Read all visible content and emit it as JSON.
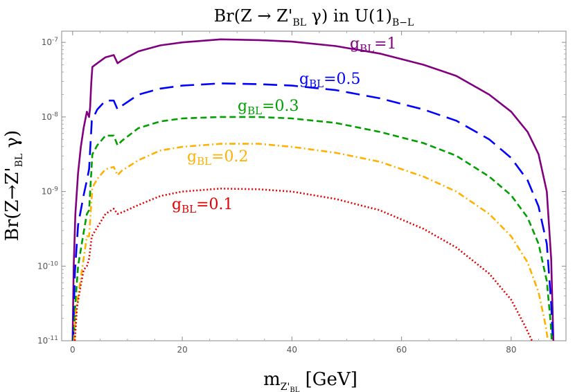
{
  "chart_data": {
    "type": "line",
    "title": {
      "main": "Br(Z → Z'",
      "sub1": "BL",
      "mid": " γ) in U(1)",
      "sub2": "B−L"
    },
    "xlabel": {
      "main": "m",
      "sub": "Z'",
      "subsub": "BL",
      "tail": " [GeV]"
    },
    "ylabel": {
      "main": "Br(Z→Z'",
      "sub": "BL",
      "tail": " γ)"
    },
    "x_scale": "linear",
    "y_scale": "log",
    "xlim": [
      -2,
      90
    ],
    "ylim_log10": [
      -11,
      -6.85
    ],
    "x_ticks": [
      0,
      20,
      40,
      60,
      80
    ],
    "x_tick_labels": [
      "0",
      "20",
      "40",
      "60",
      "80"
    ],
    "y_ticks_log10": [
      -11,
      -10,
      -9,
      -8,
      -7
    ],
    "y_tick_labels": [
      {
        "base": "10",
        "exp": "-11"
      },
      {
        "base": "10",
        "exp": "-10"
      },
      {
        "base": "10",
        "exp": "-9"
      },
      {
        "base": "10",
        "exp": "-8"
      },
      {
        "base": "10",
        "exp": "-7"
      }
    ],
    "series": [
      {
        "name": "gBL=1",
        "label": {
          "g": "g",
          "sub": "BL",
          "val": "=1"
        },
        "color": "#800080",
        "dash": "solid",
        "points": [
          [
            0,
            -11.0
          ],
          [
            0.2,
            -10.0
          ],
          [
            0.5,
            -9.3
          ],
          [
            1.0,
            -8.75
          ],
          [
            1.5,
            -8.4
          ],
          [
            2.0,
            -8.15
          ],
          [
            2.6,
            -7.93
          ],
          [
            3.0,
            -8.0
          ],
          [
            3.2,
            -7.87
          ],
          [
            3.4,
            -7.55
          ],
          [
            3.6,
            -7.33
          ],
          [
            4.5,
            -7.28
          ],
          [
            6.0,
            -7.2
          ],
          [
            7.5,
            -7.17
          ],
          [
            8.2,
            -7.28
          ],
          [
            9.0,
            -7.24
          ],
          [
            12.0,
            -7.12
          ],
          [
            16.0,
            -7.04
          ],
          [
            20.0,
            -7.0
          ],
          [
            27.0,
            -6.96
          ],
          [
            34.0,
            -6.97
          ],
          [
            40.0,
            -6.99
          ],
          [
            48.0,
            -7.05
          ],
          [
            56.0,
            -7.15
          ],
          [
            64.0,
            -7.3
          ],
          [
            70.0,
            -7.45
          ],
          [
            76.0,
            -7.7
          ],
          [
            80.0,
            -7.93
          ],
          [
            83.0,
            -8.2
          ],
          [
            85.0,
            -8.5
          ],
          [
            86.5,
            -9.0
          ],
          [
            87.3,
            -9.9
          ],
          [
            87.7,
            -11.0
          ]
        ]
      },
      {
        "name": "gBL=0.5",
        "label": {
          "g": "g",
          "sub": "BL",
          "val": "=0.5"
        },
        "color": "#0000ff",
        "dash": "longdash",
        "points": [
          [
            0.1,
            -11.0
          ],
          [
            0.4,
            -10.1
          ],
          [
            1.0,
            -9.45
          ],
          [
            2.0,
            -9.05
          ],
          [
            2.6,
            -8.85
          ],
          [
            3.0,
            -8.7
          ],
          [
            3.5,
            -8.05
          ],
          [
            4.5,
            -7.9
          ],
          [
            6.0,
            -7.78
          ],
          [
            7.5,
            -7.78
          ],
          [
            8.2,
            -7.9
          ],
          [
            9.0,
            -7.85
          ],
          [
            12.0,
            -7.7
          ],
          [
            16.0,
            -7.62
          ],
          [
            20.0,
            -7.58
          ],
          [
            27.0,
            -7.55
          ],
          [
            34.0,
            -7.56
          ],
          [
            40.0,
            -7.58
          ],
          [
            48.0,
            -7.64
          ],
          [
            56.0,
            -7.75
          ],
          [
            64.0,
            -7.9
          ],
          [
            70.0,
            -8.05
          ],
          [
            76.0,
            -8.3
          ],
          [
            80.0,
            -8.55
          ],
          [
            83.0,
            -8.85
          ],
          [
            85.0,
            -9.2
          ],
          [
            86.5,
            -9.7
          ],
          [
            87.3,
            -10.5
          ],
          [
            87.6,
            -11.0
          ]
        ]
      },
      {
        "name": "gBL=0.3",
        "label": {
          "g": "g",
          "sub": "BL",
          "val": "=0.3"
        },
        "color": "#00a000",
        "dash": "dashed",
        "points": [
          [
            0.2,
            -11.0
          ],
          [
            0.5,
            -10.5
          ],
          [
            1.0,
            -10.0
          ],
          [
            2.0,
            -9.55
          ],
          [
            2.6,
            -9.3
          ],
          [
            3.0,
            -9.25
          ],
          [
            3.6,
            -8.5
          ],
          [
            4.5,
            -8.38
          ],
          [
            6.0,
            -8.25
          ],
          [
            7.5,
            -8.25
          ],
          [
            8.2,
            -8.38
          ],
          [
            9.0,
            -8.32
          ],
          [
            12.0,
            -8.15
          ],
          [
            16.0,
            -8.06
          ],
          [
            20.0,
            -8.02
          ],
          [
            27.0,
            -8.0
          ],
          [
            34.0,
            -8.0
          ],
          [
            40.0,
            -8.02
          ],
          [
            48.0,
            -8.08
          ],
          [
            56.0,
            -8.2
          ],
          [
            64.0,
            -8.35
          ],
          [
            70.0,
            -8.52
          ],
          [
            76.0,
            -8.8
          ],
          [
            80.0,
            -9.05
          ],
          [
            83.0,
            -9.35
          ],
          [
            85.0,
            -9.7
          ],
          [
            86.5,
            -10.2
          ],
          [
            87.2,
            -10.75
          ],
          [
            87.4,
            -11.0
          ]
        ]
      },
      {
        "name": "gBL=0.2",
        "label": {
          "g": "g",
          "sub": "BL",
          "val": "=0.2"
        },
        "color": "#ffb000",
        "dash": "dashdot",
        "points": [
          [
            0.3,
            -11.0
          ],
          [
            0.6,
            -10.6
          ],
          [
            1.2,
            -10.3
          ],
          [
            2.0,
            -9.9
          ],
          [
            2.6,
            -9.6
          ],
          [
            3.0,
            -9.6
          ],
          [
            3.6,
            -8.95
          ],
          [
            4.5,
            -8.83
          ],
          [
            6.0,
            -8.7
          ],
          [
            7.5,
            -8.67
          ],
          [
            8.2,
            -8.78
          ],
          [
            9.0,
            -8.72
          ],
          [
            12.0,
            -8.58
          ],
          [
            16.0,
            -8.45
          ],
          [
            20.0,
            -8.4
          ],
          [
            27.0,
            -8.36
          ],
          [
            34.0,
            -8.36
          ],
          [
            40.0,
            -8.4
          ],
          [
            48.0,
            -8.48
          ],
          [
            56.0,
            -8.6
          ],
          [
            64.0,
            -8.8
          ],
          [
            70.0,
            -9.0
          ],
          [
            76.0,
            -9.3
          ],
          [
            80.0,
            -9.6
          ],
          [
            83.0,
            -9.95
          ],
          [
            85.0,
            -10.35
          ],
          [
            86.3,
            -10.8
          ],
          [
            86.7,
            -11.0
          ]
        ]
      },
      {
        "name": "gBL=0.1",
        "label": {
          "g": "g",
          "sub": "BL",
          "val": "=0.1"
        },
        "color": "#e00000",
        "dash": "dotted",
        "points": [
          [
            0.4,
            -11.0
          ],
          [
            0.8,
            -10.55
          ],
          [
            1.5,
            -10.25
          ],
          [
            2.0,
            -10.05
          ],
          [
            2.6,
            -10.0
          ],
          [
            3.0,
            -9.9
          ],
          [
            3.5,
            -9.6
          ],
          [
            4.5,
            -9.48
          ],
          [
            6.0,
            -9.3
          ],
          [
            7.5,
            -9.23
          ],
          [
            8.2,
            -9.3
          ],
          [
            9.0,
            -9.28
          ],
          [
            12.0,
            -9.18
          ],
          [
            16.0,
            -9.06
          ],
          [
            20.0,
            -9.0
          ],
          [
            27.0,
            -8.96
          ],
          [
            34.0,
            -8.97
          ],
          [
            40.0,
            -9.0
          ],
          [
            48.0,
            -9.1
          ],
          [
            56.0,
            -9.25
          ],
          [
            64.0,
            -9.5
          ],
          [
            70.0,
            -9.75
          ],
          [
            76.0,
            -10.1
          ],
          [
            80.0,
            -10.45
          ],
          [
            82.5,
            -10.8
          ],
          [
            83.8,
            -11.0
          ]
        ]
      }
    ]
  }
}
